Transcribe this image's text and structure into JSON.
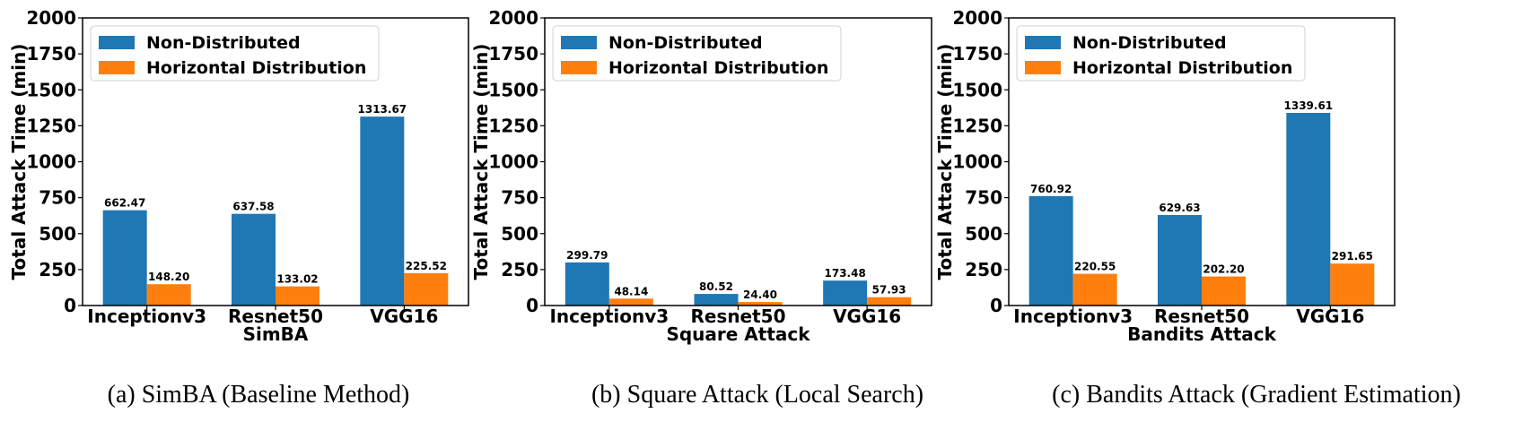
{
  "chart_data": [
    {
      "type": "bar",
      "categories": [
        "Inceptionv3",
        "Resnet50",
        "VGG16"
      ],
      "series": [
        {
          "name": "Non-Distributed",
          "values": [
            662.47,
            637.58,
            1313.67
          ],
          "labels": [
            "662.47",
            "637.58",
            "1313.67"
          ]
        },
        {
          "name": "Horizontal Distribution",
          "values": [
            148.2,
            133.02,
            225.52
          ],
          "labels": [
            "148.20",
            "133.02",
            "225.52"
          ]
        }
      ],
      "title": "",
      "xlabel": "SimBA",
      "ylabel": "Total Attack Time (min)",
      "ylim": [
        0,
        2000
      ],
      "yticks": [
        "0",
        "250",
        "500",
        "750",
        "1000",
        "1250",
        "1500",
        "1750",
        "2000"
      ],
      "legend": "top-left",
      "grid": false,
      "caption": "(a) SimBA (Baseline Method)"
    },
    {
      "type": "bar",
      "categories": [
        "Inceptionv3",
        "Resnet50",
        "VGG16"
      ],
      "series": [
        {
          "name": "Non-Distributed",
          "values": [
            299.79,
            80.52,
            173.48
          ],
          "labels": [
            "299.79",
            "80.52",
            "173.48"
          ]
        },
        {
          "name": "Horizontal Distribution",
          "values": [
            48.14,
            24.4,
            57.93
          ],
          "labels": [
            "48.14",
            "24.40",
            "57.93"
          ]
        }
      ],
      "title": "",
      "xlabel": "Square Attack",
      "ylabel": "Total Attack Time (min)",
      "ylim": [
        0,
        2000
      ],
      "yticks": [
        "0",
        "250",
        "500",
        "750",
        "1000",
        "1250",
        "1500",
        "1750",
        "2000"
      ],
      "legend": "top-left",
      "grid": false,
      "caption": "(b) Square Attack (Local Search)"
    },
    {
      "type": "bar",
      "categories": [
        "Inceptionv3",
        "Resnet50",
        "VGG16"
      ],
      "series": [
        {
          "name": "Non-Distributed",
          "values": [
            760.92,
            629.63,
            1339.61
          ],
          "labels": [
            "760.92",
            "629.63",
            "1339.61"
          ]
        },
        {
          "name": "Horizontal Distribution",
          "values": [
            220.55,
            202.2,
            291.65
          ],
          "labels": [
            "220.55",
            "202.20",
            "291.65"
          ]
        }
      ],
      "title": "",
      "xlabel": "Bandits Attack",
      "ylabel": "Total Attack Time (min)",
      "ylim": [
        0,
        2000
      ],
      "yticks": [
        "0",
        "250",
        "500",
        "750",
        "1000",
        "1250",
        "1500",
        "1750",
        "2000"
      ],
      "legend": "top-left",
      "grid": false,
      "caption": "(c) Bandits Attack (Gradient Estimation)"
    }
  ],
  "colors": {
    "series": [
      "#1f77b4",
      "#ff7f0e"
    ],
    "axis": "#000000"
  }
}
